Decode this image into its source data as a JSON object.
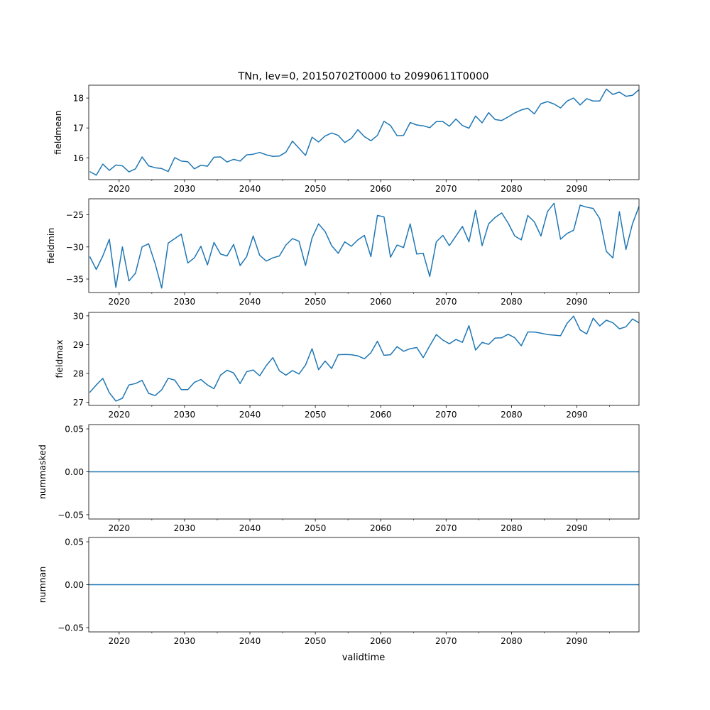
{
  "chart_data": {
    "type": "line",
    "title": "TNn, lev=0, 20150702T0000 to 20990611T0000",
    "xlabel": "validtime",
    "xlim": [
      2015.35,
      2099.5
    ],
    "x_major_ticks": [
      2020,
      2030,
      2040,
      2050,
      2060,
      2070,
      2080,
      2090
    ],
    "x_minor_ticks": [
      2025,
      2035,
      2045,
      2055,
      2065,
      2075,
      2085,
      2095
    ],
    "x": [
      2015.5,
      2016.5,
      2017.5,
      2018.5,
      2019.5,
      2020.5,
      2021.5,
      2022.5,
      2023.5,
      2024.5,
      2025.5,
      2026.5,
      2027.5,
      2028.5,
      2029.5,
      2030.5,
      2031.5,
      2032.5,
      2033.5,
      2034.5,
      2035.5,
      2036.5,
      2037.5,
      2038.5,
      2039.5,
      2040.5,
      2041.5,
      2042.5,
      2043.5,
      2044.5,
      2045.5,
      2046.5,
      2047.5,
      2048.5,
      2049.5,
      2050.5,
      2051.5,
      2052.5,
      2053.5,
      2054.5,
      2055.5,
      2056.5,
      2057.5,
      2058.5,
      2059.5,
      2060.5,
      2061.5,
      2062.5,
      2063.5,
      2064.5,
      2065.5,
      2066.5,
      2067.5,
      2068.5,
      2069.5,
      2070.5,
      2071.5,
      2072.5,
      2073.5,
      2074.5,
      2075.5,
      2076.5,
      2077.5,
      2078.5,
      2079.5,
      2080.5,
      2081.5,
      2082.5,
      2083.5,
      2084.5,
      2085.5,
      2086.5,
      2087.5,
      2088.5,
      2089.5,
      2090.5,
      2091.5,
      2092.5,
      2093.5,
      2094.5,
      2095.5,
      2096.5,
      2097.5,
      2098.5,
      2099.5
    ],
    "color": "#1f77b4",
    "panels": [
      {
        "ylabel": "fieldmean",
        "ylim": [
          15.27,
          18.43
        ],
        "yticks": [
          16,
          17,
          18
        ],
        "ytick_labels": [
          "16",
          "17",
          "18"
        ],
        "values": [
          15.54,
          15.42,
          15.79,
          15.58,
          15.76,
          15.73,
          15.53,
          15.63,
          16.03,
          15.73,
          15.67,
          15.64,
          15.54,
          16.01,
          15.89,
          15.87,
          15.63,
          15.75,
          15.72,
          16.02,
          16.03,
          15.86,
          15.95,
          15.89,
          16.1,
          16.12,
          16.18,
          16.1,
          16.05,
          16.06,
          16.19,
          16.56,
          16.32,
          16.08,
          16.69,
          16.53,
          16.73,
          16.83,
          16.75,
          16.51,
          16.65,
          16.94,
          16.71,
          16.57,
          16.75,
          17.22,
          17.08,
          16.74,
          16.75,
          17.18,
          17.1,
          17.07,
          17.01,
          17.21,
          17.21,
          17.06,
          17.3,
          17.08,
          16.99,
          17.4,
          17.17,
          17.51,
          17.28,
          17.25,
          17.37,
          17.5,
          17.6,
          17.66,
          17.47,
          17.81,
          17.88,
          17.8,
          17.67,
          17.9,
          18.0,
          17.77,
          17.98,
          17.9,
          17.9,
          18.3,
          18.12,
          18.2,
          18.06,
          18.09,
          18.28
        ]
      },
      {
        "ylabel": "fieldmin",
        "ylim": [
          -37.1,
          -22.5
        ],
        "yticks": [
          -35,
          -30,
          -25
        ],
        "ytick_labels": [
          "−35",
          "−30",
          "−25"
        ],
        "values": [
          -31.5,
          -33.5,
          -31.4,
          -28.8,
          -36.3,
          -30.0,
          -35.3,
          -34.1,
          -30.0,
          -29.5,
          -32.6,
          -36.4,
          -29.4,
          -28.7,
          -28.0,
          -32.5,
          -31.7,
          -29.9,
          -32.8,
          -29.3,
          -31.1,
          -31.4,
          -29.6,
          -32.9,
          -31.5,
          -28.3,
          -31.3,
          -32.2,
          -31.7,
          -31.4,
          -29.7,
          -28.7,
          -29.1,
          -32.9,
          -28.6,
          -26.4,
          -27.6,
          -29.8,
          -31.0,
          -29.2,
          -29.9,
          -28.9,
          -28.2,
          -31.5,
          -25.1,
          -25.3,
          -31.6,
          -29.7,
          -30.1,
          -26.4,
          -31.1,
          -31.0,
          -34.6,
          -29.2,
          -28.2,
          -29.8,
          -28.3,
          -26.8,
          -29.2,
          -24.3,
          -29.8,
          -26.4,
          -25.4,
          -24.7,
          -26.3,
          -28.3,
          -28.9,
          -25.1,
          -26.1,
          -28.3,
          -24.5,
          -23.2,
          -28.8,
          -27.9,
          -27.4,
          -23.5,
          -23.8,
          -24.0,
          -25.6,
          -30.7,
          -31.7,
          -24.5,
          -30.4,
          -26.4,
          -23.7
        ]
      },
      {
        "ylabel": "fieldmax",
        "ylim": [
          26.89,
          30.12
        ],
        "yticks": [
          27,
          28,
          29,
          30
        ],
        "ytick_labels": [
          "27",
          "28",
          "29",
          "30"
        ],
        "values": [
          27.34,
          27.6,
          27.83,
          27.33,
          27.04,
          27.14,
          27.6,
          27.65,
          27.76,
          27.31,
          27.23,
          27.43,
          27.83,
          27.77,
          27.44,
          27.44,
          27.69,
          27.79,
          27.6,
          27.47,
          27.94,
          28.11,
          28.02,
          27.65,
          28.06,
          28.12,
          27.92,
          28.27,
          28.55,
          28.09,
          27.94,
          28.1,
          27.98,
          28.29,
          28.86,
          28.13,
          28.43,
          28.17,
          28.65,
          28.66,
          28.65,
          28.61,
          28.51,
          28.72,
          29.12,
          28.63,
          28.65,
          28.93,
          28.77,
          28.86,
          28.9,
          28.55,
          28.96,
          29.35,
          29.16,
          29.03,
          29.18,
          29.08,
          29.66,
          28.81,
          29.08,
          29.01,
          29.23,
          29.24,
          29.36,
          29.24,
          28.96,
          29.44,
          29.44,
          29.4,
          29.35,
          29.33,
          29.31,
          29.74,
          29.99,
          29.51,
          29.37,
          29.92,
          29.65,
          29.85,
          29.76,
          29.55,
          29.62,
          29.89,
          29.76
        ]
      },
      {
        "ylabel": "nummasked",
        "ylim": [
          -0.055,
          0.055
        ],
        "yticks": [
          -0.05,
          0.0,
          0.05
        ],
        "ytick_labels": [
          "−0.05",
          "0.00",
          "0.05"
        ],
        "constant": 0
      },
      {
        "ylabel": "numnan",
        "ylim": [
          -0.055,
          0.055
        ],
        "yticks": [
          -0.05,
          0.0,
          0.05
        ],
        "ytick_labels": [
          "−0.05",
          "0.00",
          "0.05"
        ],
        "constant": 0
      }
    ]
  }
}
